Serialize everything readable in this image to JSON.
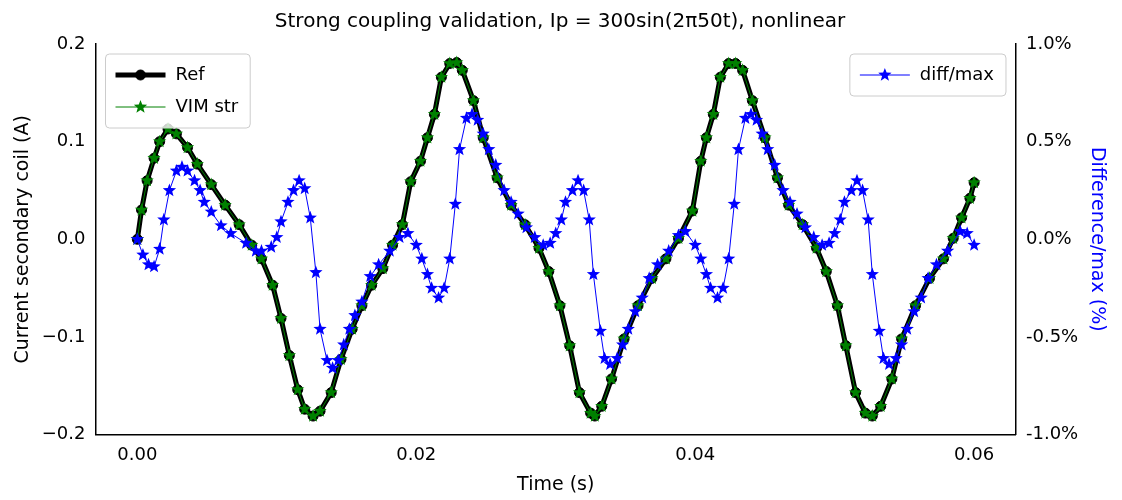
{
  "chart_data": {
    "type": "line",
    "title": "Strong coupling validation, Ip = 300sin(2π50t), nonlinear",
    "xlabel": "Time (s)",
    "ylabel": "Current secondary coil (A)",
    "y2label": "Difference/max (%)",
    "xlim": [
      -0.003,
      0.063
    ],
    "xticks": [
      {
        "value": 0,
        "label": "0.00"
      },
      {
        "value": 0.02,
        "label": "0.02"
      },
      {
        "value": 0.04,
        "label": "0.04"
      },
      {
        "value": 0.06,
        "label": "0.06"
      }
    ],
    "ylim": [
      -0.2,
      0.2
    ],
    "yticks": [
      {
        "value": -0.2,
        "label": "−0.2"
      },
      {
        "value": -0.1,
        "label": "−0.1"
      },
      {
        "value": 0,
        "label": "0.0"
      },
      {
        "value": 0.1,
        "label": "0.1"
      },
      {
        "value": 0.2,
        "label": "0.2"
      }
    ],
    "y2lim": [
      -1,
      1
    ],
    "y2ticks": [
      {
        "value": -1,
        "label": "-1.0%"
      },
      {
        "value": -0.5,
        "label": "-0.5%"
      },
      {
        "value": 0,
        "label": "0.0%"
      },
      {
        "value": 0.5,
        "label": "0.5%"
      },
      {
        "value": 1,
        "label": "1.0%"
      }
    ],
    "legend": "top left",
    "grid": false,
    "series": [
      {
        "name": "Ref",
        "color": "#000000",
        "marker": "circle",
        "line_style": "solid",
        "x": [
          0,
          0.0003,
          0.0007,
          0.0012,
          0.0016,
          0.0022,
          0.0028,
          0.0036,
          0.0043,
          0.0053,
          0.0063,
          0.0073,
          0.0082,
          0.0089,
          0.0097,
          0.0103,
          0.0109,
          0.0115,
          0.012,
          0.0126,
          0.0131,
          0.0139,
          0.0146,
          0.0154,
          0.0161,
          0.0168,
          0.0176,
          0.0183,
          0.019,
          0.0196,
          0.0203,
          0.0208,
          0.0213,
          0.0218,
          0.0224,
          0.0229,
          0.0233,
          0.0241,
          0.0248,
          0.0258,
          0.0268,
          0.0278,
          0.0288,
          0.0295,
          0.0303,
          0.031,
          0.0317,
          0.0325,
          0.0328,
          0.0333,
          0.034,
          0.0349,
          0.0359,
          0.0369,
          0.0379,
          0.0388,
          0.0398,
          0.0404,
          0.0408,
          0.0413,
          0.0418,
          0.0424,
          0.0429,
          0.0434,
          0.0441,
          0.045,
          0.0459,
          0.0467,
          0.0477,
          0.0487,
          0.0494,
          0.0502,
          0.0508,
          0.0515,
          0.0522,
          0.0527,
          0.0533,
          0.0541,
          0.0548,
          0.0558,
          0.0568,
          0.0578,
          0.0585,
          0.0591,
          0.0597,
          0.06
        ],
        "values": [
          0,
          0.03,
          0.06,
          0.083,
          0.1,
          0.113,
          0.108,
          0.094,
          0.077,
          0.056,
          0.035,
          0.015,
          -0.006,
          -0.02,
          -0.047,
          -0.081,
          -0.119,
          -0.154,
          -0.174,
          -0.181,
          -0.176,
          -0.157,
          -0.123,
          -0.092,
          -0.068,
          -0.047,
          -0.03,
          -0.006,
          0.015,
          0.059,
          0.08,
          0.104,
          0.128,
          0.166,
          0.18,
          0.181,
          0.173,
          0.142,
          0.104,
          0.063,
          0.035,
          0.015,
          -0.009,
          -0.033,
          -0.068,
          -0.109,
          -0.157,
          -0.178,
          -0.181,
          -0.171,
          -0.143,
          -0.102,
          -0.068,
          -0.04,
          -0.02,
          0.001,
          0.029,
          0.08,
          0.104,
          0.128,
          0.166,
          0.18,
          0.18,
          0.173,
          0.142,
          0.104,
          0.063,
          0.035,
          0.015,
          -0.009,
          -0.033,
          -0.068,
          -0.109,
          -0.157,
          -0.178,
          -0.181,
          -0.171,
          -0.143,
          -0.102,
          -0.068,
          -0.04,
          -0.02,
          0.001,
          0.022,
          0.042,
          0.058
        ]
      },
      {
        "name": "VIM str",
        "color": "#008000",
        "marker": "star",
        "line_style": "solid",
        "x": [
          0,
          0.0003,
          0.0007,
          0.0012,
          0.0016,
          0.0022,
          0.0028,
          0.0036,
          0.0043,
          0.0053,
          0.0063,
          0.0073,
          0.0082,
          0.0089,
          0.0097,
          0.0103,
          0.0109,
          0.0115,
          0.012,
          0.0126,
          0.0131,
          0.0139,
          0.0146,
          0.0154,
          0.0161,
          0.0168,
          0.0176,
          0.0183,
          0.019,
          0.0196,
          0.0203,
          0.0208,
          0.0213,
          0.0218,
          0.0224,
          0.0229,
          0.0233,
          0.0241,
          0.0248,
          0.0258,
          0.0268,
          0.0278,
          0.0288,
          0.0295,
          0.0303,
          0.031,
          0.0317,
          0.0325,
          0.0328,
          0.0333,
          0.034,
          0.0349,
          0.0359,
          0.0369,
          0.0379,
          0.0388,
          0.0398,
          0.0404,
          0.0408,
          0.0413,
          0.0418,
          0.0424,
          0.0429,
          0.0434,
          0.0441,
          0.045,
          0.0459,
          0.0467,
          0.0477,
          0.0487,
          0.0494,
          0.0502,
          0.0508,
          0.0515,
          0.0522,
          0.0527,
          0.0533,
          0.0541,
          0.0548,
          0.0558,
          0.0568,
          0.0578,
          0.0585,
          0.0591,
          0.0597,
          0.06
        ],
        "values": [
          0,
          0.03,
          0.06,
          0.083,
          0.1,
          0.113,
          0.108,
          0.094,
          0.077,
          0.056,
          0.035,
          0.015,
          -0.006,
          -0.02,
          -0.047,
          -0.081,
          -0.119,
          -0.154,
          -0.174,
          -0.181,
          -0.176,
          -0.157,
          -0.123,
          -0.092,
          -0.068,
          -0.047,
          -0.03,
          -0.006,
          0.015,
          0.059,
          0.08,
          0.104,
          0.128,
          0.166,
          0.18,
          0.181,
          0.173,
          0.142,
          0.104,
          0.063,
          0.035,
          0.015,
          -0.009,
          -0.033,
          -0.068,
          -0.109,
          -0.157,
          -0.178,
          -0.181,
          -0.171,
          -0.143,
          -0.102,
          -0.068,
          -0.04,
          -0.02,
          0.001,
          0.029,
          0.08,
          0.104,
          0.128,
          0.166,
          0.18,
          0.18,
          0.173,
          0.142,
          0.104,
          0.063,
          0.035,
          0.015,
          -0.009,
          -0.033,
          -0.068,
          -0.109,
          -0.157,
          -0.178,
          -0.181,
          -0.171,
          -0.143,
          -0.102,
          -0.068,
          -0.04,
          -0.02,
          0.001,
          0.022,
          0.042,
          0.058
        ]
      },
      {
        "name": "diff/max",
        "color": "#0000ff",
        "marker": "star",
        "line_style": "solid",
        "axis": "y2",
        "x": [
          0,
          0.0004,
          0.0008,
          0.0012,
          0.0016,
          0.0019,
          0.0023,
          0.0028,
          0.0032,
          0.0036,
          0.0041,
          0.0045,
          0.0048,
          0.0053,
          0.006,
          0.0067,
          0.0078,
          0.0085,
          0.0089,
          0.0096,
          0.01,
          0.0103,
          0.0108,
          0.0112,
          0.0116,
          0.012,
          0.0124,
          0.0128,
          0.0131,
          0.0136,
          0.014,
          0.0144,
          0.0148,
          0.0152,
          0.0156,
          0.0161,
          0.0167,
          0.0173,
          0.0181,
          0.0188,
          0.0194,
          0.02,
          0.0204,
          0.0208,
          0.0211,
          0.0216,
          0.022,
          0.0224,
          0.0228,
          0.0231,
          0.0236,
          0.024,
          0.0244,
          0.0248,
          0.0252,
          0.0257,
          0.0263,
          0.0268,
          0.0273,
          0.0279,
          0.0285,
          0.0291,
          0.0296,
          0.03,
          0.0304,
          0.0307,
          0.0312,
          0.0316,
          0.032,
          0.0324,
          0.0327,
          0.0332,
          0.0335,
          0.0339,
          0.0344,
          0.0348,
          0.0352,
          0.0357,
          0.0362,
          0.0367,
          0.0373,
          0.0381,
          0.0388,
          0.0393,
          0.04,
          0.0404,
          0.0408,
          0.0411,
          0.0416,
          0.042,
          0.0424,
          0.0428,
          0.0431,
          0.0436,
          0.044,
          0.0444,
          0.0448,
          0.0452,
          0.0457,
          0.0463,
          0.0468,
          0.0473,
          0.0479,
          0.0485,
          0.0491,
          0.0496,
          0.05,
          0.0504,
          0.0507,
          0.0512,
          0.0516,
          0.052,
          0.0524,
          0.0527,
          0.0532,
          0.0535,
          0.0539,
          0.0544,
          0.0548,
          0.0552,
          0.0557,
          0.0562,
          0.0567,
          0.0573,
          0.0581,
          0.059,
          0.0595,
          0.06
        ],
        "values": [
          0,
          -0.08,
          -0.13,
          -0.14,
          -0.05,
          0.1,
          0.25,
          0.35,
          0.37,
          0.35,
          0.3,
          0.25,
          0.19,
          0.14,
          0.07,
          0.03,
          -0.02,
          -0.06,
          -0.06,
          -0.04,
          0.01,
          0.09,
          0.19,
          0.25,
          0.3,
          0.26,
          0.11,
          -0.17,
          -0.46,
          -0.62,
          -0.66,
          -0.62,
          -0.54,
          -0.46,
          -0.39,
          -0.32,
          -0.19,
          -0.13,
          -0.06,
          0.01,
          0.03,
          -0.03,
          -0.1,
          -0.18,
          -0.25,
          -0.3,
          -0.25,
          -0.1,
          0.18,
          0.46,
          0.62,
          0.64,
          0.61,
          0.54,
          0.46,
          0.38,
          0.25,
          0.19,
          0.13,
          0.06,
          0.01,
          -0.03,
          -0.02,
          0.03,
          0.1,
          0.19,
          0.25,
          0.3,
          0.25,
          0.1,
          -0.18,
          -0.47,
          -0.61,
          -0.64,
          -0.61,
          -0.54,
          -0.46,
          -0.37,
          -0.3,
          -0.2,
          -0.13,
          -0.06,
          0.02,
          0.04,
          -0.03,
          -0.1,
          -0.18,
          -0.25,
          -0.3,
          -0.25,
          -0.1,
          0.18,
          0.46,
          0.62,
          0.64,
          0.61,
          0.54,
          0.46,
          0.38,
          0.25,
          0.19,
          0.13,
          0.06,
          0.01,
          -0.03,
          -0.02,
          0.03,
          0.1,
          0.19,
          0.25,
          0.3,
          0.25,
          0.1,
          -0.18,
          -0.47,
          -0.61,
          -0.64,
          -0.61,
          -0.54,
          -0.46,
          -0.37,
          -0.3,
          -0.2,
          -0.13,
          -0.06,
          0.04,
          0.03,
          -0.03
        ]
      }
    ]
  }
}
